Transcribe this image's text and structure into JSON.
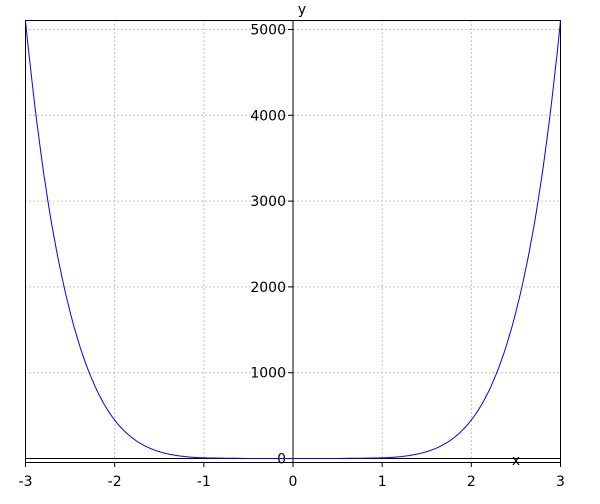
{
  "chart_data": {
    "type": "line",
    "title": "",
    "xlabel": "x",
    "ylabel": "y",
    "xlim": [
      -3,
      3
    ],
    "ylim": [
      -60,
      5105
    ],
    "x_ticks": [
      "-3",
      "-2",
      "-1",
      "0",
      "1",
      "2",
      "3"
    ],
    "x_tick_values": [
      -3,
      -2,
      -1,
      0,
      1,
      2,
      3
    ],
    "y_ticks": [
      "0",
      "1000",
      "2000",
      "3000",
      "4000",
      "5000"
    ],
    "y_tick_values": [
      0,
      1000,
      2000,
      3000,
      4000,
      5000
    ],
    "grid": true,
    "series": [
      {
        "color": "#0000ff",
        "x": [
          -3,
          -2.75,
          -2.5,
          -2.25,
          -2,
          -1.75,
          -1.5,
          -1.25,
          -1,
          -0.5,
          0,
          0.5,
          1,
          1.25,
          1.5,
          1.75,
          2,
          2.25,
          2.5,
          2.75,
          3
        ],
        "y": [
          5103,
          3009,
          1709,
          912,
          448,
          201,
          80,
          27,
          7,
          0.1,
          0,
          0.1,
          7,
          27,
          80,
          201,
          448,
          912,
          1709,
          3009,
          5103
        ]
      }
    ]
  }
}
